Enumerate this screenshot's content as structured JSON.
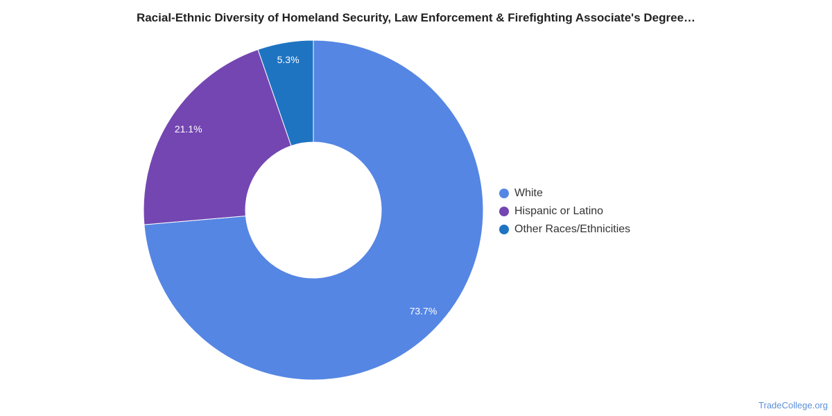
{
  "chart_data": {
    "type": "pie",
    "title": "Racial-Ethnic Diversity of Homeland Security, Law Enforcement & Firefighting Associate's Degree…",
    "donut": true,
    "categories": [
      "White",
      "Hispanic or Latino",
      "Other Races/Ethnicities"
    ],
    "values": [
      73.7,
      21.1,
      5.3
    ],
    "data_labels": [
      "73.7%",
      "21.1%",
      "5.3%"
    ],
    "colors": [
      "#5586e3",
      "#7446b2",
      "#1f74c2"
    ],
    "legend": {
      "position": "right",
      "entries": [
        "White",
        "Hispanic or Latino",
        "Other Races/Ethnicities"
      ]
    }
  },
  "credit": "TradeCollege.org"
}
